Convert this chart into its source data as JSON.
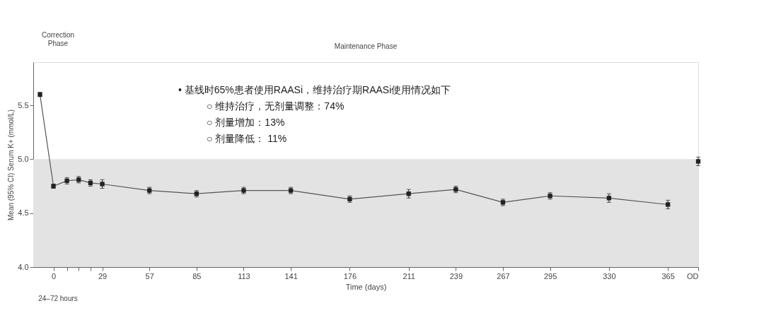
{
  "chart_data": {
    "type": "line",
    "xlabel": "Time (days)",
    "ylabel": "Mean (95% CI) Serum K+ (mmol/L)",
    "xlim": [
      -12,
      383
    ],
    "xticks": [
      0,
      {
        "value": 8,
        "label": null
      },
      {
        "value": 15,
        "label": null
      },
      {
        "value": 22,
        "label": null
      },
      29,
      57,
      85,
      113,
      141,
      176,
      211,
      239,
      267,
      295,
      330,
      365,
      {
        "value": 383,
        "label": "OD"
      }
    ],
    "ylim": [
      4.0,
      5.9
    ],
    "yticks": [
      {
        "value": 4.0,
        "label": "4.0"
      },
      {
        "value": 4.5,
        "label": "4.5"
      },
      {
        "value": 5.0,
        "label": "5.0"
      },
      {
        "value": 5.5,
        "label": "5.5"
      }
    ],
    "bands": [
      {
        "axis": "y",
        "from": 4.0,
        "to": 5.0,
        "color": "#e3e3e3"
      }
    ],
    "series": [
      {
        "color": "#222222",
        "x": [
          -8,
          0,
          8,
          15,
          22,
          29,
          57,
          85,
          113,
          141,
          176,
          211,
          239,
          267,
          295,
          330,
          365
        ],
        "values": [
          5.6,
          4.75,
          4.8,
          4.81,
          4.78,
          4.77,
          4.71,
          4.68,
          4.71,
          4.71,
          4.63,
          4.68,
          4.72,
          4.6,
          4.66,
          4.64,
          4.58
        ],
        "errors": [
          0.02,
          0.02,
          0.03,
          0.03,
          0.03,
          0.04,
          0.03,
          0.03,
          0.03,
          0.03,
          0.03,
          0.04,
          0.03,
          0.03,
          0.03,
          0.04,
          0.04
        ]
      },
      {
        "type": "scatter",
        "color": "#222222",
        "x": [
          383
        ],
        "values": [
          4.98
        ],
        "errors": [
          0.04
        ]
      }
    ],
    "marker": "square",
    "line_style": "solid",
    "grid": false,
    "annotations": [
      "Correction\nPhase",
      "Maintenance Phase",
      "24–72 hours",
      "•   基线时65%患者使用RAASi，维持治疗期RAASi使用情况如下",
      "○   维持治疗，无剂量调整：74%",
      "○   剂量增加：13%",
      "○   剂量降低： 11%"
    ]
  }
}
